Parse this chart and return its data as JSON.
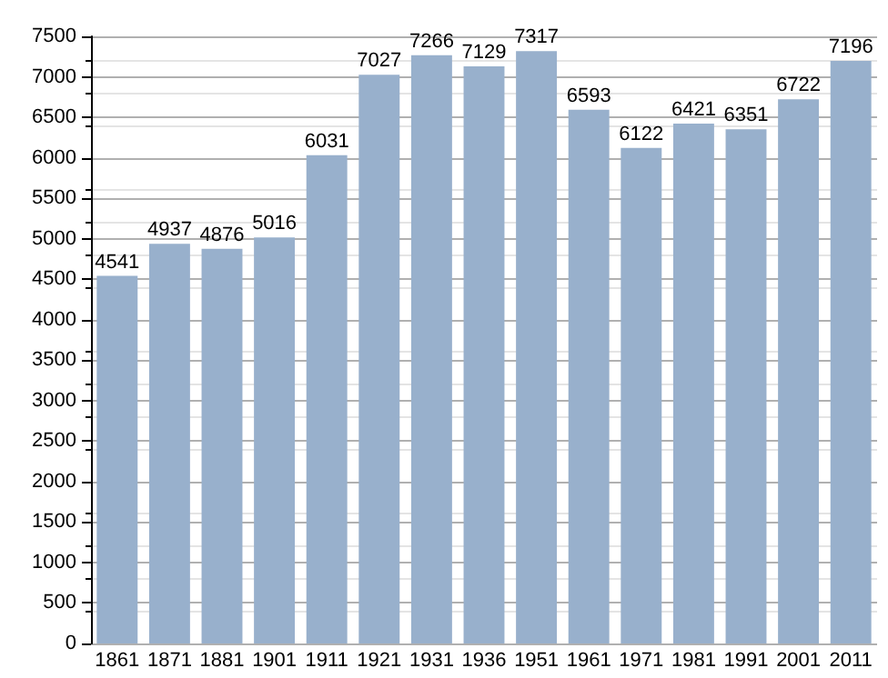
{
  "chart_data": {
    "type": "bar",
    "categories": [
      "1861",
      "1871",
      "1881",
      "1901",
      "1911",
      "1921",
      "1931",
      "1936",
      "1951",
      "1961",
      "1971",
      "1981",
      "1991",
      "2001",
      "2011"
    ],
    "values": [
      4541,
      4937,
      4876,
      5016,
      6031,
      7027,
      7266,
      7129,
      7317,
      6593,
      6122,
      6421,
      6351,
      6722,
      7196
    ],
    "color": "#98b0cc",
    "ylim": [
      0,
      7500
    ],
    "yticks": [
      0,
      500,
      1000,
      1500,
      2000,
      2500,
      3000,
      3500,
      4000,
      4500,
      5000,
      5500,
      6000,
      6500,
      7000,
      7500
    ],
    "grid": "y",
    "data_labels": true
  }
}
